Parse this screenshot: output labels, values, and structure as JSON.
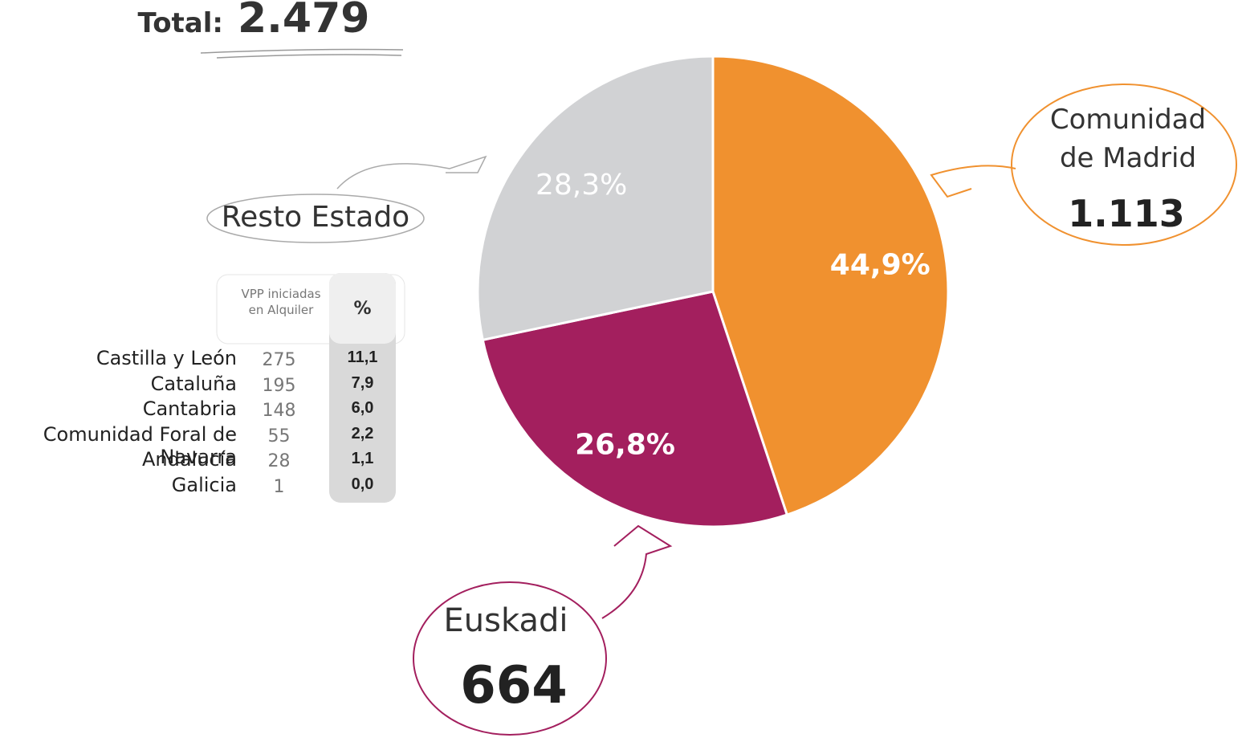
{
  "chart_data": {
    "type": "pie",
    "total": {
      "label": "Total:",
      "value_label": "2.479"
    },
    "categories": [
      "Comunidad de Madrid",
      "Euskadi",
      "Resto Estado"
    ],
    "values": [
      44.9,
      26.8,
      28.3
    ],
    "value_labels": [
      "44,9%",
      "26,8%",
      "28,3%"
    ],
    "colors": [
      "#f0912f",
      "#a31f5e",
      "#d1d2d4"
    ],
    "count_labels": [
      "1.113",
      "664"
    ]
  },
  "table": {
    "columns": [
      "VPP iniciadas en Alquiler",
      "%"
    ],
    "rows": [
      [
        "Castilla y León",
        "275",
        "11,1"
      ],
      [
        "Cataluña",
        "195",
        "7,9"
      ],
      [
        "Cantabria",
        "148",
        "6,0"
      ],
      [
        "Comunidad Foral de Navarra",
        "55",
        "2,2"
      ],
      [
        "Andalucía",
        "28",
        "1,1"
      ],
      [
        "Galicia",
        "1",
        "0,0"
      ]
    ]
  }
}
